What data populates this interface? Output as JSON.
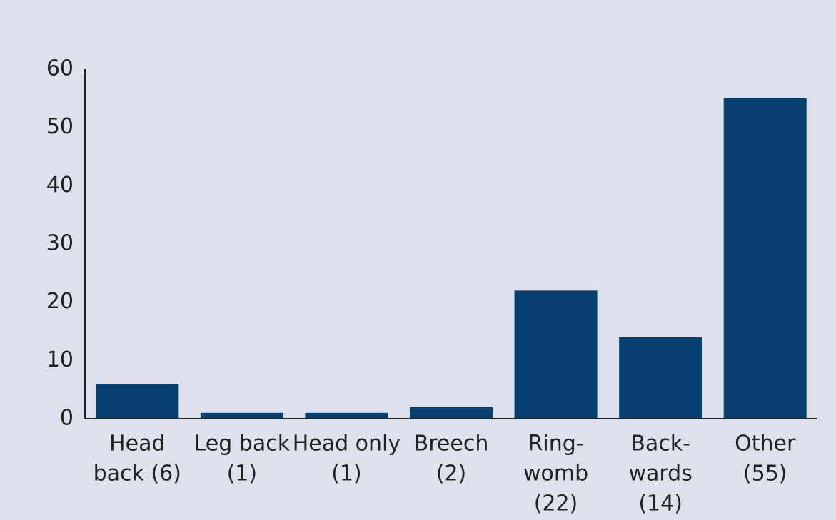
{
  "chart_data": {
    "type": "bar",
    "categories": [
      [
        "Head",
        "back (6)"
      ],
      [
        "Leg back",
        "(1)"
      ],
      [
        "Head only",
        "(1)"
      ],
      [
        "Breech",
        "(2)"
      ],
      [
        "Ring-",
        "womb",
        "(22)"
      ],
      [
        "Back-",
        "wards",
        "(14)"
      ],
      [
        "Other",
        "(55)"
      ]
    ],
    "values": [
      6,
      1,
      1,
      2,
      22,
      14,
      55
    ],
    "color": "#063f70",
    "ylim": [
      0,
      60
    ],
    "yticks": [
      0,
      10,
      20,
      30,
      40,
      50,
      60
    ],
    "grid": false
  }
}
